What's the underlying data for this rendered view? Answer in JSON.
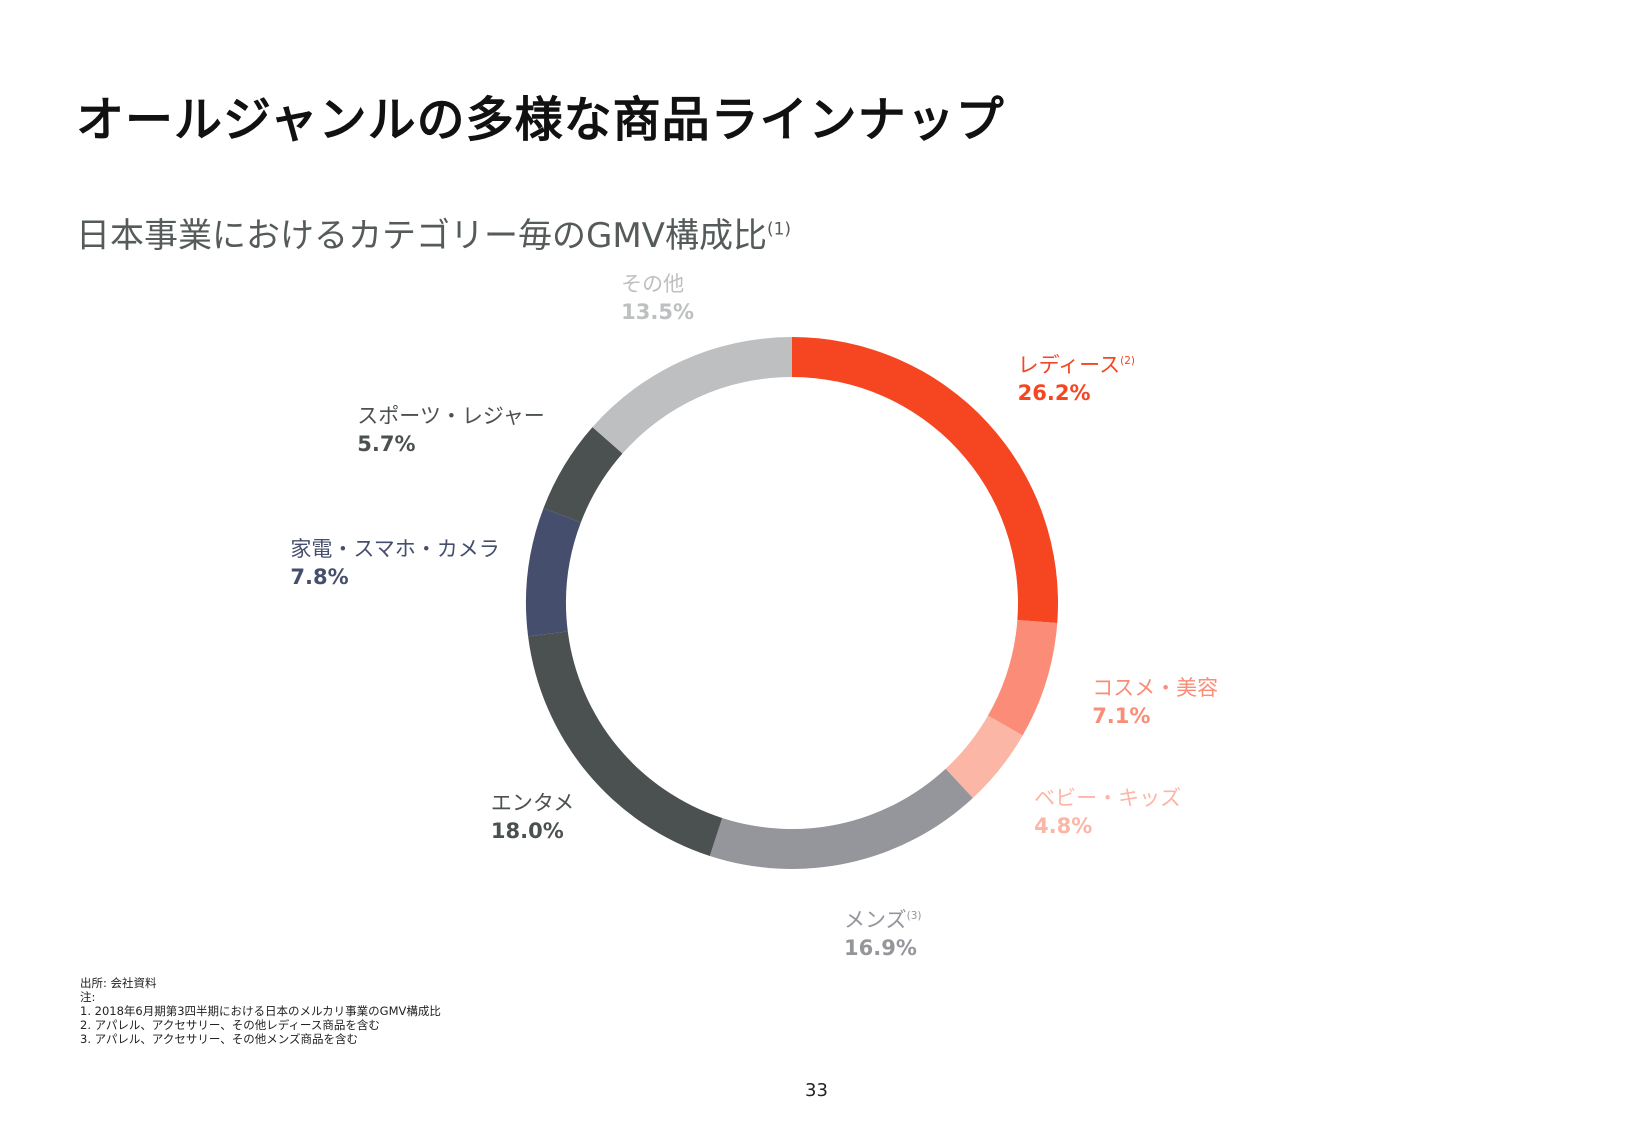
{
  "page": {
    "title": "オールジャンルの多様な商品ラインナップ",
    "subtitle": "日本事業におけるカテゴリー毎のGMV構成比",
    "subtitle_sup": "(1)",
    "source": "出所: 会社資料",
    "notes_heading": "注:",
    "notes": [
      "1.  2018年6月期第3四半期における日本のメルカリ事業のGMV構成比",
      "2.  アパレル、アクセサリー、その他レディース商品を含む",
      "3.  アパレル、アクセサリー、その他メンズ商品を含む"
    ],
    "page_number": "33"
  },
  "chart_data": {
    "type": "pie",
    "variant": "donut",
    "title": "",
    "start": "12 o'clock",
    "direction": "clockwise",
    "categories": [
      "レディース",
      "コスメ・美容",
      "ベビー・キッズ",
      "メンズ",
      "エンタメ",
      "家電・スマホ・カメラ",
      "スポーツ・レジャー",
      "その他"
    ],
    "sups": [
      "(2)",
      "",
      "",
      "(3)",
      "",
      "",
      "",
      ""
    ],
    "values": [
      26.2,
      7.1,
      4.8,
      16.9,
      18.0,
      7.8,
      5.7,
      13.5
    ],
    "value_labels": [
      "26.2%",
      "7.1%",
      "4.8%",
      "16.9%",
      "18.0%",
      "7.8%",
      "5.7%",
      "13.5%"
    ],
    "colors": [
      "#f54521",
      "#fa8c78",
      "#fcb6a6",
      "#94969b",
      "#4b5150",
      "#464e6e",
      "#4b5150",
      "#bdbfc0"
    ],
    "label_colors": [
      "#f54521",
      "#fa8c78",
      "#fcb6a6",
      "#94969b",
      "#4b5150",
      "#464e6e",
      "#4b5150",
      "#bdbfc0"
    ]
  }
}
